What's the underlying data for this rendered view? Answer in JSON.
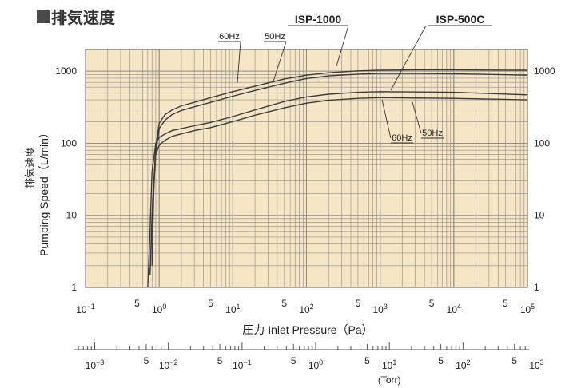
{
  "header": {
    "title": "排気速度"
  },
  "chart_data": {
    "type": "line",
    "title": "排気速度",
    "ylabel_jp": "排気速度",
    "ylabel": "Pumping Speed（L/min）",
    "xlabel_jp": "圧力",
    "xlabel": "Inlet Pressure（Pa）",
    "x2label": "(Torr)",
    "xscale": "log",
    "yscale": "log",
    "xlim": [
      0.1,
      100000
    ],
    "ylim": [
      1,
      2000
    ],
    "x2lim": [
      0.00075,
      750
    ],
    "grid": true,
    "x_ticks": [
      {
        "v": 0.1,
        "base": "10",
        "exp": "−1"
      },
      {
        "v": 1,
        "base": "10",
        "exp": "0"
      },
      {
        "v": 10,
        "base": "10",
        "exp": "1"
      },
      {
        "v": 100,
        "base": "10",
        "exp": "2"
      },
      {
        "v": 1000,
        "base": "10",
        "exp": "3"
      },
      {
        "v": 10000,
        "base": "10",
        "exp": "4"
      },
      {
        "v": 100000,
        "base": "10",
        "exp": "5"
      }
    ],
    "x_five_label": "5",
    "x2_ticks": [
      {
        "v": 0.001,
        "base": "10",
        "exp": "−3"
      },
      {
        "v": 0.01,
        "base": "10",
        "exp": "−2"
      },
      {
        "v": 0.1,
        "base": "10",
        "exp": "−1"
      },
      {
        "v": 1,
        "base": "10",
        "exp": "0"
      },
      {
        "v": 10,
        "base": "10",
        "exp": "1"
      },
      {
        "v": 100,
        "base": "10",
        "exp": "2"
      },
      {
        "v": 1000,
        "base": "10",
        "exp": "3"
      }
    ],
    "y_ticks": [
      {
        "v": 1,
        "label": "1"
      },
      {
        "v": 10,
        "label": "10"
      },
      {
        "v": 100,
        "label": "100"
      },
      {
        "v": 1000,
        "label": "1000"
      }
    ],
    "series": [
      {
        "name": "ISP-1000 60Hz",
        "x": [
          0.75,
          0.8,
          0.9,
          1.0,
          1.2,
          1.5,
          2,
          3,
          5,
          10,
          20,
          50,
          100,
          200,
          500,
          1000,
          3000,
          10000,
          100000
        ],
        "y": [
          1.5,
          10,
          90,
          190,
          250,
          290,
          330,
          370,
          430,
          520,
          620,
          780,
          880,
          950,
          1010,
          1030,
          1040,
          1040,
          1030
        ]
      },
      {
        "name": "ISP-1000 50Hz",
        "x": [
          0.75,
          0.8,
          0.9,
          1.0,
          1.2,
          1.5,
          2,
          3,
          5,
          10,
          20,
          50,
          100,
          200,
          500,
          1000,
          3000,
          10000,
          100000
        ],
        "y": [
          1.5,
          8,
          75,
          160,
          210,
          250,
          285,
          320,
          370,
          450,
          540,
          680,
          790,
          860,
          910,
          930,
          930,
          920,
          880
        ]
      },
      {
        "name": "ISP-500C 60Hz",
        "x": [
          0.7,
          0.75,
          0.8,
          0.9,
          1.0,
          1.2,
          1.5,
          2,
          3,
          5,
          10,
          20,
          50,
          100,
          200,
          500,
          1000,
          10000,
          100000
        ],
        "y": [
          1,
          6,
          40,
          100,
          120,
          135,
          150,
          160,
          175,
          195,
          235,
          290,
          380,
          440,
          480,
          510,
          520,
          510,
          470
        ]
      },
      {
        "name": "ISP-500C 50Hz",
        "x": [
          0.8,
          0.85,
          0.9,
          1.0,
          1.2,
          1.5,
          2,
          3,
          5,
          10,
          20,
          50,
          100,
          200,
          500,
          1000,
          10000,
          100000
        ],
        "y": [
          2,
          30,
          70,
          95,
          110,
          125,
          135,
          150,
          165,
          200,
          245,
          310,
          360,
          395,
          420,
          430,
          420,
          400
        ]
      }
    ],
    "annotations": [
      {
        "text": "ISP-1000",
        "target": "ISP-1000"
      },
      {
        "text": "ISP-500C",
        "target": "ISP-500C"
      },
      {
        "text": "60Hz",
        "target": "ISP-1000 60Hz"
      },
      {
        "text": "50Hz",
        "target": "ISP-1000 50Hz"
      },
      {
        "text": "60Hz",
        "target": "ISP-500C 60Hz"
      },
      {
        "text": "50Hz",
        "target": "ISP-500C 50Hz"
      }
    ],
    "colors": {
      "plot_bg": "#f7e6c6",
      "grid": "#8c8c8c",
      "line": "#3a3a3a"
    }
  }
}
